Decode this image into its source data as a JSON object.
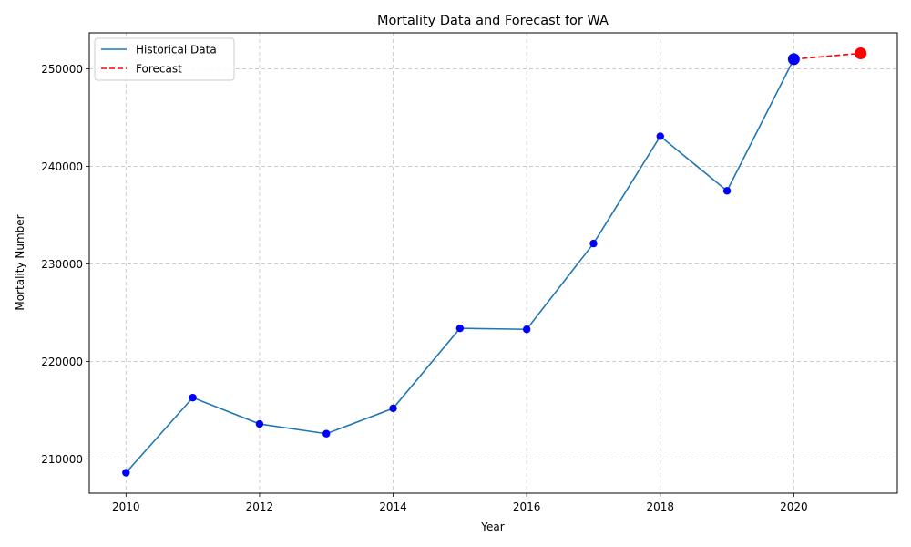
{
  "chart_data": {
    "type": "line",
    "title": "Mortality Data and Forecast for WA",
    "xlabel": "Year",
    "ylabel": "Mortality Number",
    "xlim": [
      2009.45,
      2021.55
    ],
    "ylim": [
      206500,
      253700
    ],
    "xticks": [
      2010,
      2012,
      2014,
      2016,
      2018,
      2020
    ],
    "yticks": [
      210000,
      220000,
      230000,
      240000,
      250000
    ],
    "grid": true,
    "legend_position": "top-left",
    "series": [
      {
        "name": "Historical Data",
        "color": "#1f77b4",
        "marker_color": "#0000ff",
        "line_style": "solid",
        "x": [
          2010,
          2011,
          2012,
          2013,
          2014,
          2015,
          2016,
          2017,
          2018,
          2019,
          2020
        ],
        "y": [
          208600,
          216300,
          213600,
          212600,
          215200,
          223400,
          223300,
          232100,
          243100,
          237500,
          251000
        ]
      },
      {
        "name": "Forecast",
        "color": "#ff0000",
        "line_style": "dashed",
        "x": [
          2020,
          2021
        ],
        "y": [
          251000,
          251600
        ]
      }
    ],
    "highlight_points": [
      {
        "x": 2020,
        "y": 251000,
        "color": "#0000ff"
      },
      {
        "x": 2021,
        "y": 251600,
        "color": "#ff0000"
      }
    ]
  }
}
